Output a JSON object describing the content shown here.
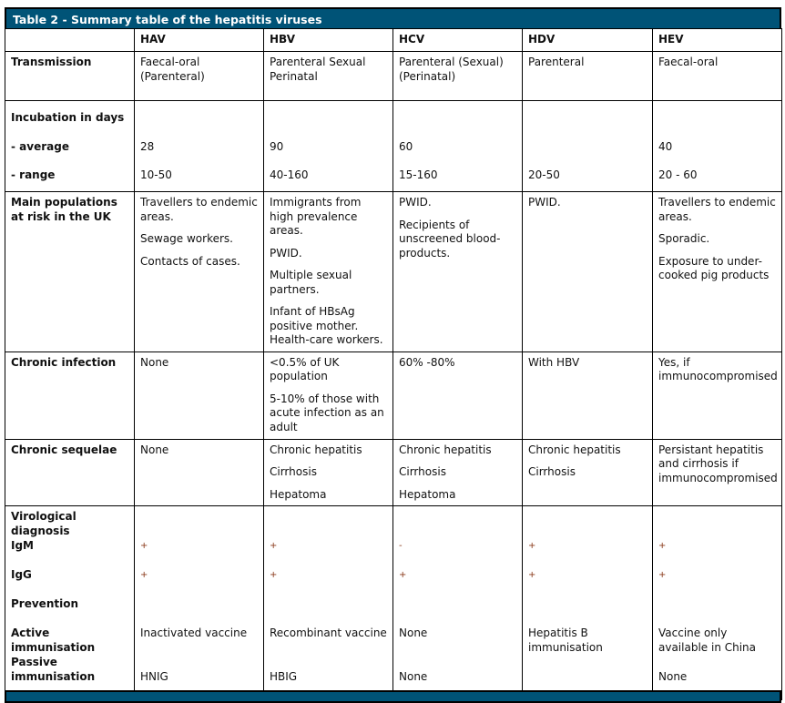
{
  "title": "Table 2 - Summary table of the hepatitis viruses",
  "columns": [
    "",
    "HAV",
    "HBV",
    "HCV",
    "HDV",
    "HEV"
  ],
  "transmission": {
    "label": "Transmission",
    "values": [
      [
        "Faecal-oral",
        "(Parenteral)"
      ],
      [
        "Parenteral Sexual",
        "Perinatal"
      ],
      [
        "Parenteral (Sexual)",
        "(Perinatal)"
      ],
      [
        "Parenteral"
      ],
      [
        "Faecal-oral"
      ]
    ]
  },
  "incubation": {
    "label": "Incubation in days",
    "average_label": "- average",
    "range_label": "- range",
    "average": [
      "28",
      "90",
      "60",
      "",
      "40"
    ],
    "range": [
      "10-50",
      "40-160",
      "15-160",
      "20-50",
      "20 - 60"
    ]
  },
  "populations": {
    "label": "Main populations at risk in the UK",
    "values": [
      [
        "Travellers to endemic areas.",
        "Sewage workers.",
        "Contacts of cases."
      ],
      [
        "Immigrants from high prevalence areas.",
        "PWID.",
        "Multiple sexual partners.",
        "Infant of HBsAg positive mother. Health-care workers."
      ],
      [
        "PWID.",
        "Recipients of unscreened blood-products."
      ],
      [
        "PWID."
      ],
      [
        "Travellers to endemic areas.",
        "Sporadic.",
        "Exposure to under-cooked pig products"
      ]
    ]
  },
  "chronic_infection": {
    "label": "Chronic infection",
    "values": [
      [
        "None"
      ],
      [
        "<0.5% of UK population",
        "5-10% of those with acute infection as an adult"
      ],
      [
        "60% -80%"
      ],
      [
        "With HBV"
      ],
      [
        "Yes, if immunocompromised"
      ]
    ]
  },
  "chronic_sequelae": {
    "label": "Chronic sequelae",
    "values": [
      [
        "None"
      ],
      [
        "Chronic hepatitis",
        "Cirrhosis",
        "Hepatoma"
      ],
      [
        "Chronic hepatitis",
        "Cirrhosis",
        "Hepatoma"
      ],
      [
        "Chronic hepatitis",
        "Cirrhosis"
      ],
      [
        "Persistant hepatitis and cirrhosis if immunocompromised"
      ]
    ]
  },
  "virological": {
    "label": "Virological diagnosis",
    "igm_label": "IgM",
    "igg_label": "IgG",
    "igm": [
      "+",
      "+",
      "-",
      "+",
      "+"
    ],
    "igg": [
      "+",
      "+",
      "+",
      "+",
      "+"
    ]
  },
  "prevention": {
    "label": "Prevention",
    "active_label": "Active immunisation",
    "passive_label": "Passive immunisation",
    "active": [
      "Inactivated vaccine",
      "Recombinant vaccine",
      "None",
      "Hepatitis B immunisation",
      "Vaccine only available in China"
    ],
    "passive": [
      "HNIG",
      "HBIG",
      "None",
      "",
      "None"
    ]
  }
}
